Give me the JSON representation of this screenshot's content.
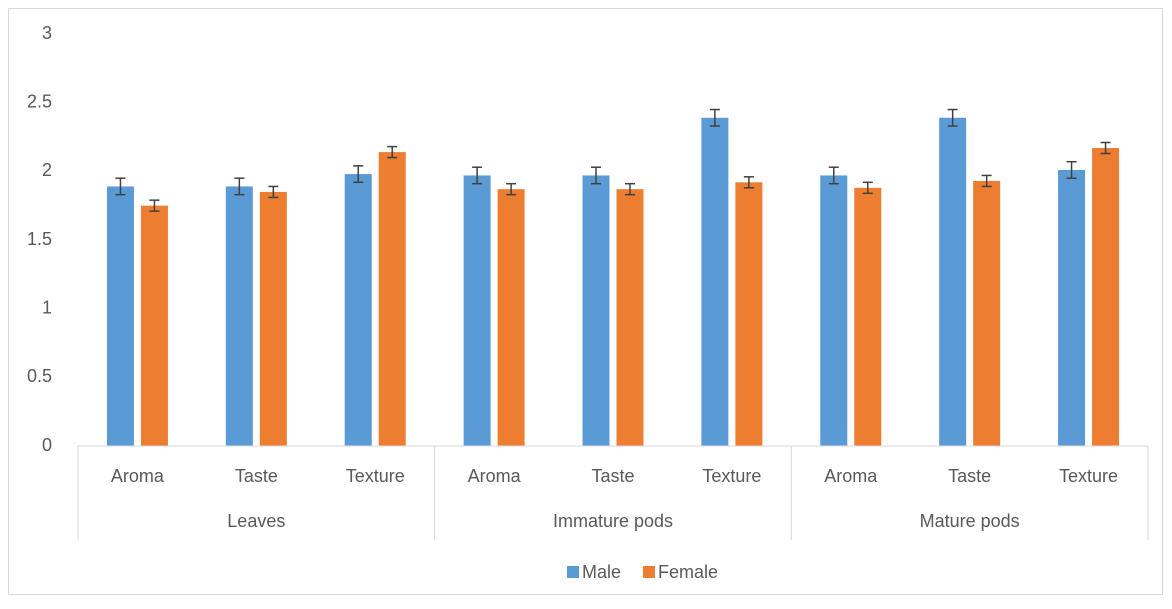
{
  "chart_data": {
    "type": "bar",
    "categories": [
      "Aroma",
      "Taste",
      "Texture",
      "Aroma",
      "Taste",
      "Texture",
      "Aroma",
      "Taste",
      "Texture"
    ],
    "category_groups": [
      "Leaves",
      "Immature pods",
      "Mature pods"
    ],
    "series": [
      {
        "name": "Male",
        "color": "#5b9bd5",
        "values": [
          1.89,
          1.89,
          1.98,
          1.97,
          1.97,
          2.39,
          1.97,
          2.39,
          2.01
        ],
        "errors": [
          0.06,
          0.06,
          0.06,
          0.06,
          0.06,
          0.06,
          0.06,
          0.06,
          0.06
        ]
      },
      {
        "name": "Female",
        "color": "#ed7d31",
        "values": [
          1.75,
          1.85,
          2.14,
          1.87,
          1.87,
          1.92,
          1.88,
          1.93,
          2.17
        ],
        "errors": [
          0.04,
          0.04,
          0.04,
          0.04,
          0.04,
          0.04,
          0.04,
          0.04,
          0.04
        ]
      }
    ],
    "ylim": [
      0,
      3
    ],
    "yticks": [
      0,
      0.5,
      1,
      1.5,
      2,
      2.5,
      3
    ],
    "grid": false,
    "legend": "bottom"
  }
}
